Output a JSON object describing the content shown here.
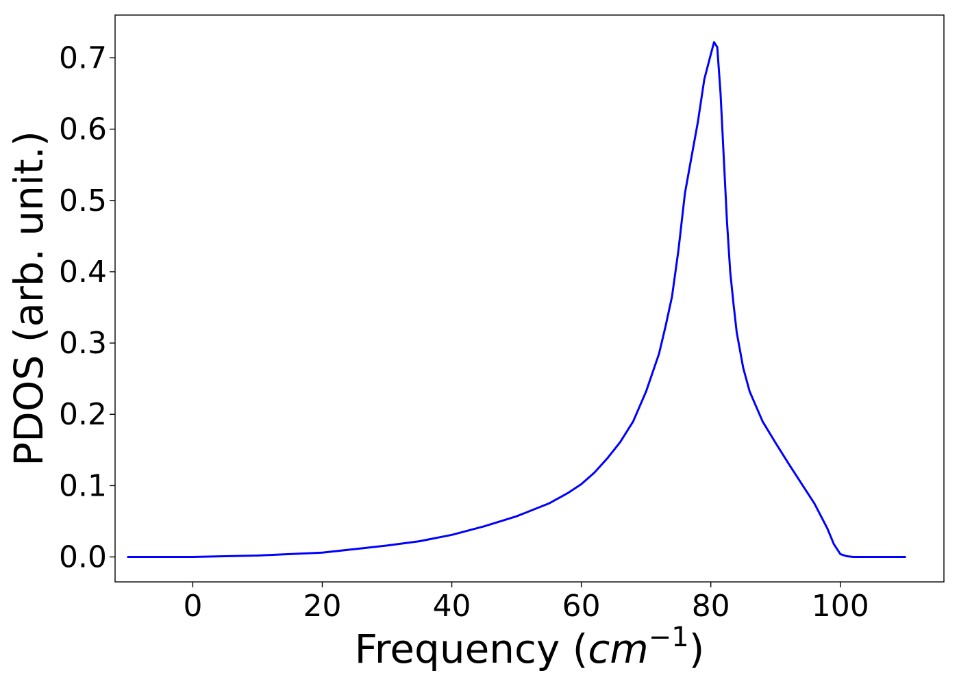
{
  "chart_data": {
    "type": "line",
    "title": "",
    "xlabel": "Frequency (",
    "xlabel_math": "cm",
    "xlabel_exponent": "−1",
    "xlabel_close": ")",
    "ylabel": "PDOS (arb. unit.)",
    "xlim": [
      -12,
      116
    ],
    "ylim": [
      -0.035,
      0.76
    ],
    "x_ticks": [
      0,
      20,
      40,
      60,
      80,
      100
    ],
    "x_tick_labels": [
      "0",
      "20",
      "40",
      "60",
      "80",
      "100"
    ],
    "y_ticks": [
      0.0,
      0.1,
      0.2,
      0.3,
      0.4,
      0.5,
      0.6,
      0.7
    ],
    "y_tick_labels": [
      "0.0",
      "0.1",
      "0.2",
      "0.3",
      "0.4",
      "0.5",
      "0.6",
      "0.7"
    ],
    "grid": false,
    "legend": "none",
    "series": [
      {
        "color": "#0000ff",
        "x": [
          -10,
          0,
          5,
          10,
          15,
          20,
          25,
          30,
          35,
          40,
          45,
          50,
          55,
          58,
          60,
          62,
          64,
          66,
          68,
          70,
          72,
          73,
          74,
          75,
          76,
          77,
          78,
          79,
          80,
          80.5,
          81,
          81.5,
          82,
          82.5,
          83,
          83.5,
          84,
          85,
          86,
          88,
          90,
          92,
          94,
          96,
          98,
          99,
          100,
          101,
          102,
          105,
          110
        ],
        "y": [
          0.0,
          0.0,
          0.001,
          0.002,
          0.004,
          0.006,
          0.011,
          0.016,
          0.022,
          0.031,
          0.043,
          0.057,
          0.075,
          0.09,
          0.102,
          0.118,
          0.138,
          0.161,
          0.19,
          0.232,
          0.285,
          0.323,
          0.365,
          0.43,
          0.51,
          0.56,
          0.61,
          0.67,
          0.705,
          0.722,
          0.715,
          0.65,
          0.56,
          0.47,
          0.4,
          0.355,
          0.315,
          0.265,
          0.232,
          0.19,
          0.16,
          0.131,
          0.103,
          0.075,
          0.04,
          0.018,
          0.004,
          0.001,
          0.0,
          0.0,
          0.0
        ]
      }
    ]
  }
}
